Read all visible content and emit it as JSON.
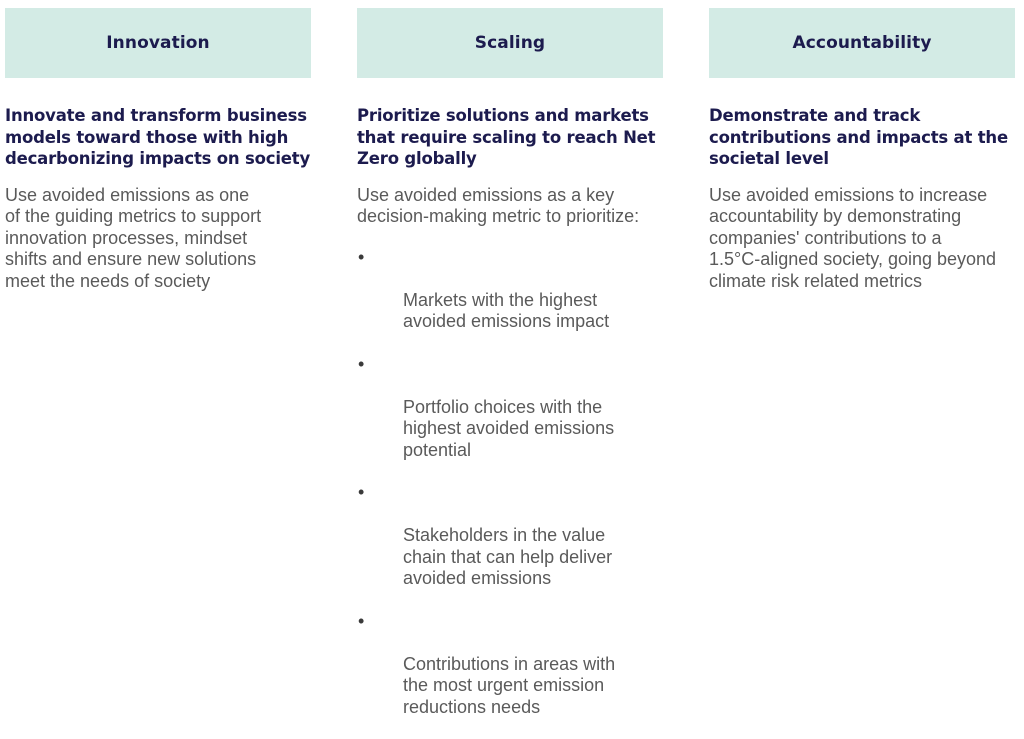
{
  "header_color": "#d3ebe5",
  "columns": [
    {
      "title": "Innovation",
      "subtitle": "Innovate and transform business models toward those with high decarbonizing impacts on society",
      "body": "Use avoided emissions as one\nof the guiding metrics to support\ninnovation processes, mindset\nshifts and ensure new solutions\nmeet the needs of society"
    },
    {
      "title": "Scaling",
      "subtitle": "Prioritize solutions and markets that require scaling to reach Net Zero globally",
      "body": "Use avoided emissions as a key\ndecision-making metric to prioritize:",
      "bullet_char": "•",
      "bullets": [
        "Markets with the highest\navoided emissions impact",
        "Portfolio choices with the\nhighest avoided emissions\npotential",
        "Stakeholders in the value\nchain that can help deliver\navoided emissions",
        "Contributions in areas with\nthe most urgent emission\nreductions needs"
      ]
    },
    {
      "title": "Accountability",
      "subtitle": "Demonstrate and track contributions and impacts at the societal level",
      "body": "Use avoided emissions to increase\naccountability by demonstrating\ncompanies' contributions to a\n1.5°C-aligned society, going beyond\nclimate risk related metrics"
    }
  ]
}
